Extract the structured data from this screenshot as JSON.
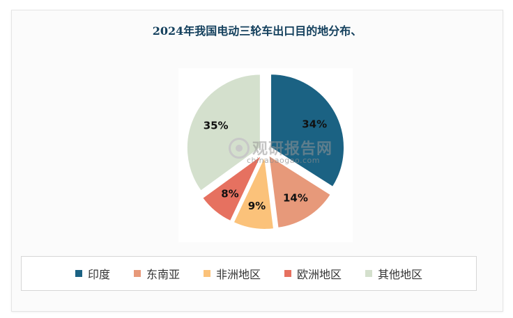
{
  "chart_data": {
    "type": "pie",
    "title": "2024年我国电动三轮车出口目的地分布、",
    "categories": [
      "印度",
      "东南亚",
      "非洲地区",
      "欧洲地区",
      "其他地区"
    ],
    "values": [
      34,
      14,
      9,
      8,
      35
    ],
    "labels": [
      "34%",
      "14%",
      "9%",
      "8%",
      "35%"
    ],
    "colors": [
      "#1b6283",
      "#e7997a",
      "#fbc27a",
      "#e67160",
      "#d4e0cd"
    ],
    "legend_position": "bottom",
    "exploded": true
  },
  "watermark": {
    "text": "观研报告网",
    "url": "chinabaogao.com"
  }
}
